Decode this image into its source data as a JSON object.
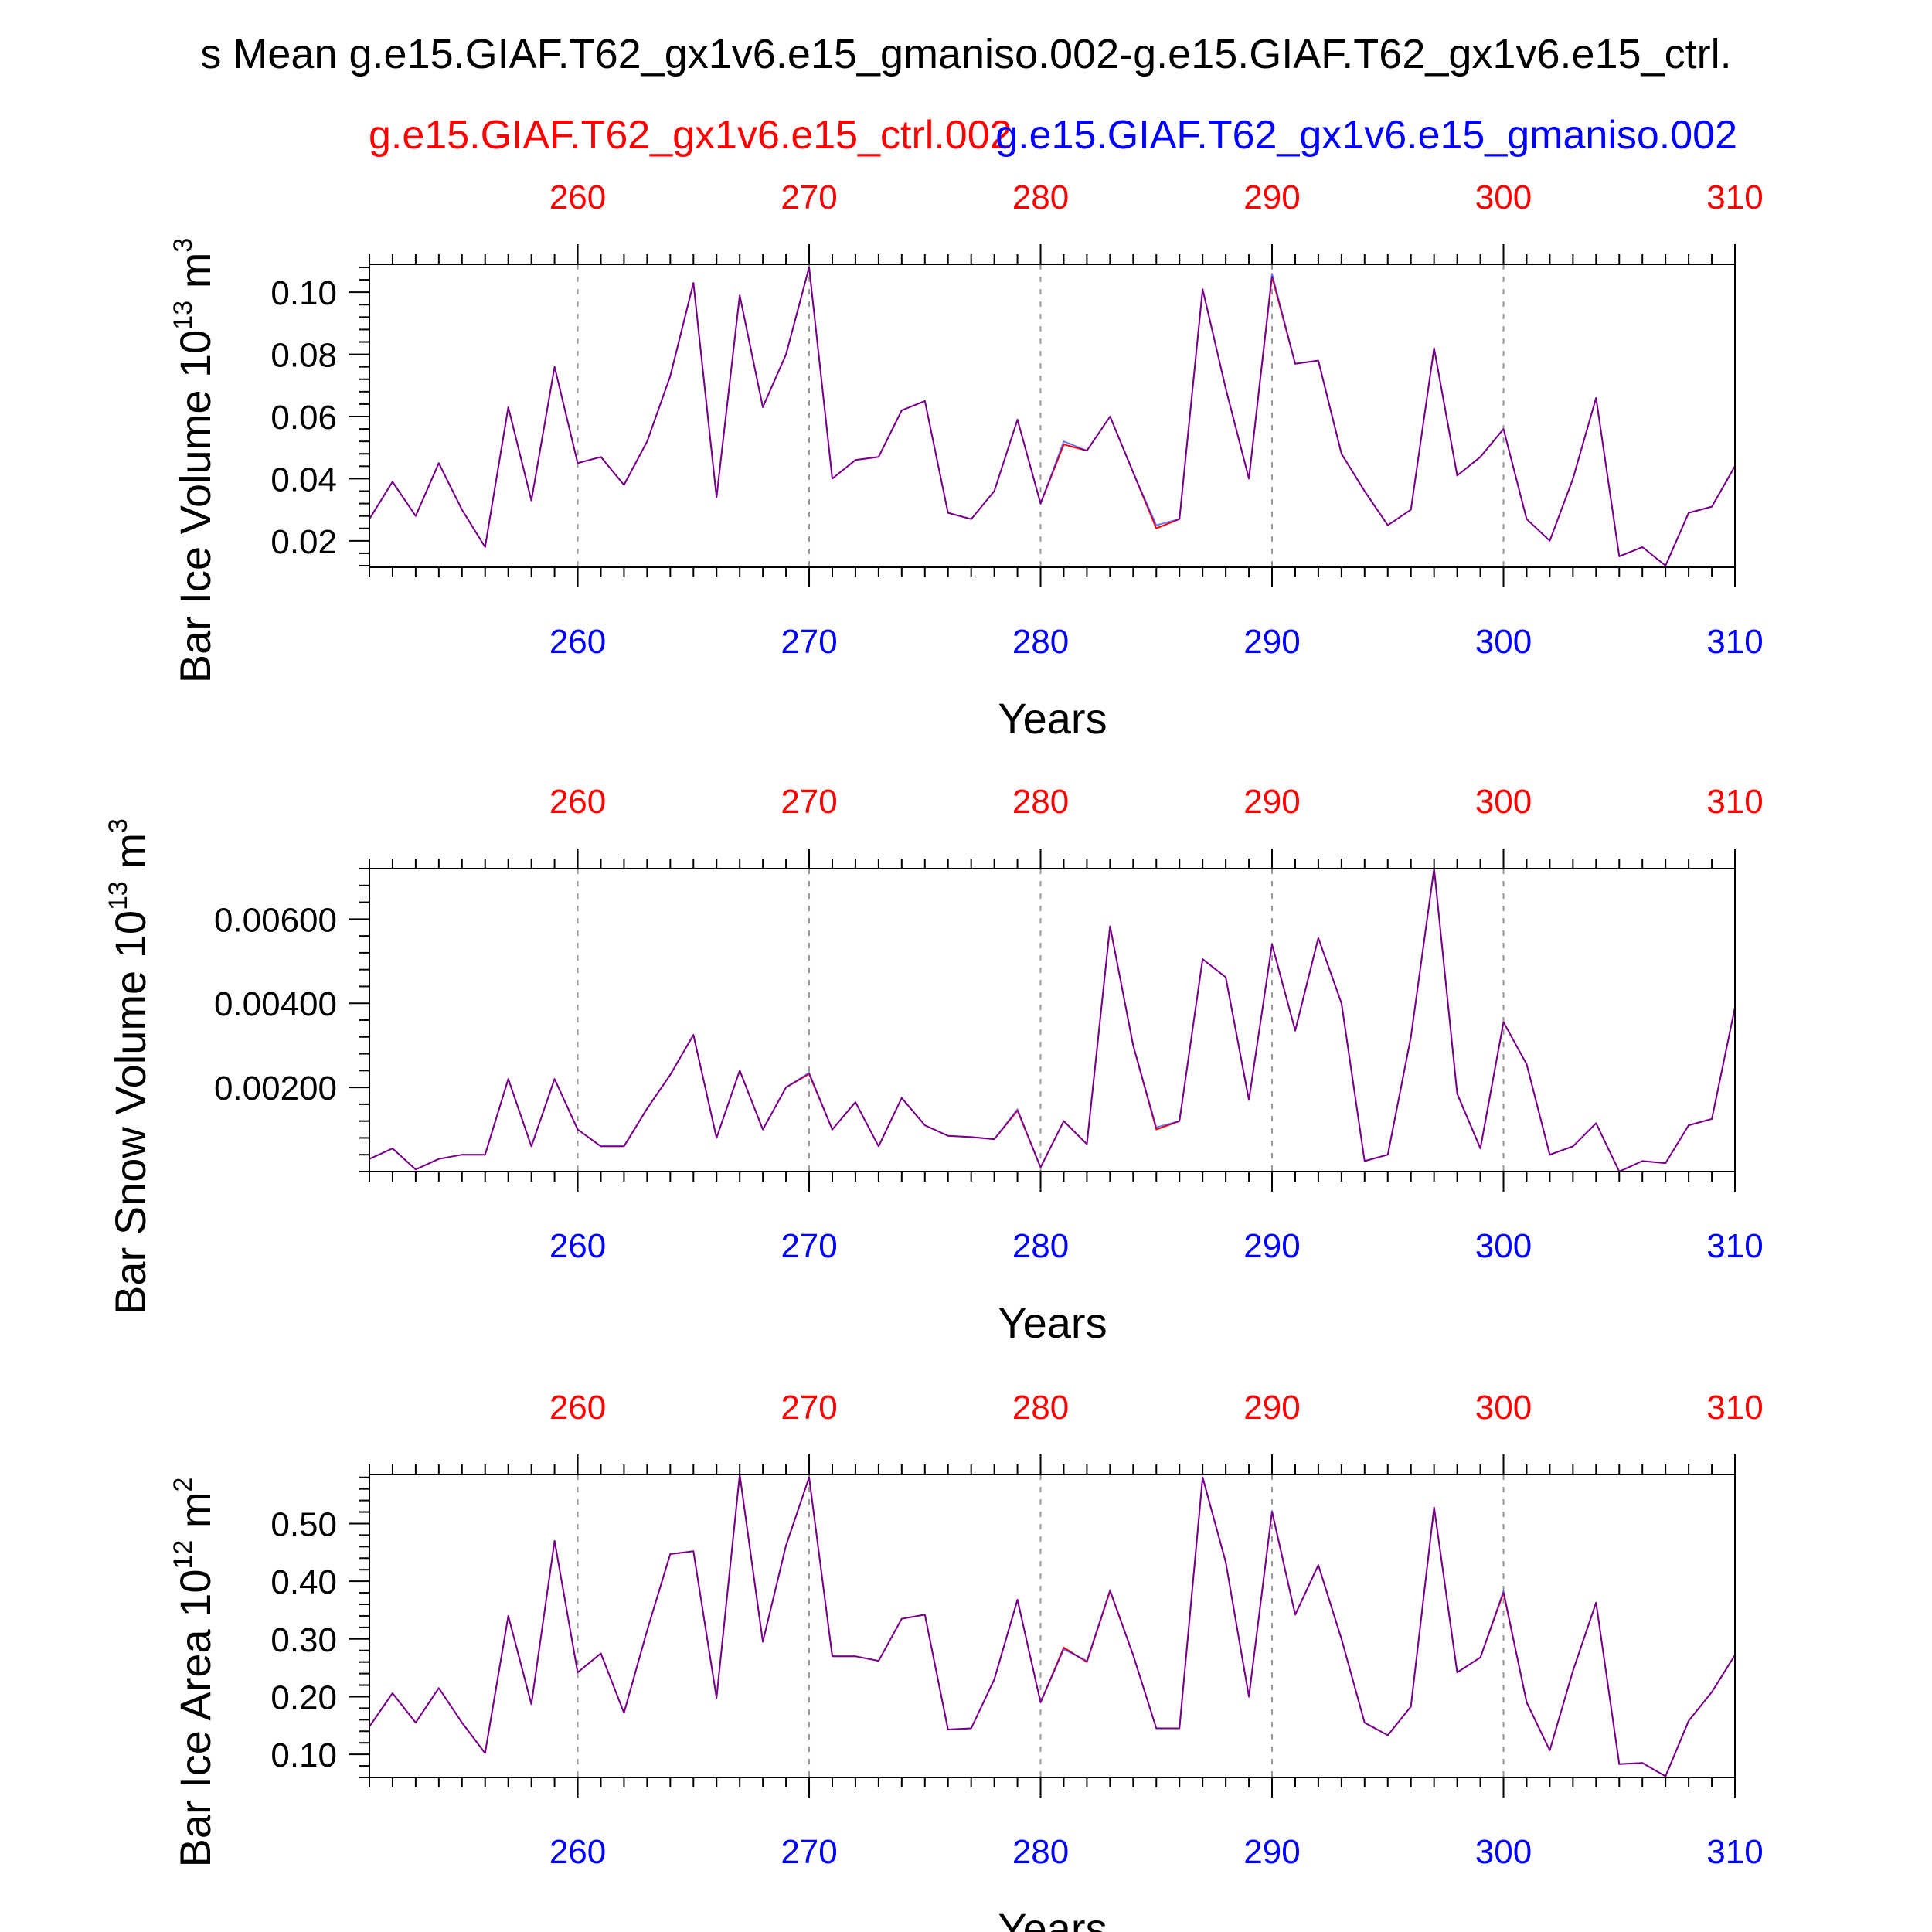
{
  "figure": {
    "title": "s Mean g.e15.GIAF.T62_gx1v6.e15_gmaniso.002-g.e15.GIAF.T62_gx1v6.e15_ctrl.",
    "case_ctrl": "g.e15.GIAF.T62_gx1v6.e15_ctrl.002",
    "case_test": "g.e15.GIAF.T62_gx1v6.e15_gmaniso.002",
    "xlabel": "Years",
    "colors": {
      "ctrl": "#ff0000",
      "test": "#0000ff",
      "axes": "#000000",
      "grid": "#999999"
    }
  },
  "chart_data": [
    {
      "type": "line",
      "ylabel": {
        "text": "Bar Ice Volume 10",
        "exp": "13",
        "unit": " m",
        "unit_exp": "3"
      },
      "xlim": [
        251,
        310
      ],
      "ylim": [
        0.0115,
        0.109
      ],
      "yticks": [
        0.02,
        0.04,
        0.06,
        0.08,
        0.1
      ],
      "ytick_labels": [
        "0.02",
        "0.04",
        "0.06",
        "0.08",
        "0.10"
      ],
      "xticks": [
        260,
        270,
        280,
        290,
        300,
        310
      ],
      "xtick_labels": [
        "260",
        "270",
        "280",
        "290",
        "300",
        "310"
      ],
      "x_start": 251,
      "series": [
        {
          "name": "g.e15.GIAF.T62_gx1v6.e15_ctrl.002",
          "color": "#ff0000",
          "values": [
            0.027,
            0.039,
            0.028,
            0.045,
            0.03,
            0.018,
            0.063,
            0.033,
            0.076,
            0.045,
            0.047,
            0.038,
            0.052,
            0.073,
            0.103,
            0.034,
            0.099,
            0.063,
            0.08,
            0.108,
            0.04,
            0.046,
            0.047,
            0.062,
            0.065,
            0.029,
            0.027,
            0.036,
            0.059,
            0.032,
            0.051,
            0.049,
            0.06,
            0.042,
            0.024,
            0.027,
            0.101,
            0.069,
            0.04,
            0.105,
            0.077,
            0.078,
            0.048,
            0.036,
            0.025,
            0.03,
            0.082,
            0.041,
            0.047,
            0.056,
            0.027,
            0.02,
            0.04,
            0.066,
            0.015,
            0.018,
            0.012,
            0.029,
            0.031,
            0.044
          ]
        },
        {
          "name": "g.e15.GIAF.T62_gx1v6.e15_gmaniso.002",
          "color": "#0000ff",
          "values": [
            0.027,
            0.039,
            0.028,
            0.045,
            0.03,
            0.018,
            0.063,
            0.033,
            0.076,
            0.045,
            0.047,
            0.038,
            0.052,
            0.073,
            0.103,
            0.034,
            0.099,
            0.063,
            0.08,
            0.108,
            0.04,
            0.046,
            0.047,
            0.062,
            0.065,
            0.029,
            0.027,
            0.036,
            0.059,
            0.032,
            0.052,
            0.049,
            0.06,
            0.042,
            0.025,
            0.027,
            0.101,
            0.069,
            0.04,
            0.106,
            0.077,
            0.078,
            0.048,
            0.036,
            0.025,
            0.03,
            0.082,
            0.041,
            0.047,
            0.056,
            0.027,
            0.02,
            0.04,
            0.066,
            0.015,
            0.018,
            0.012,
            0.029,
            0.031,
            0.044
          ]
        }
      ]
    },
    {
      "type": "line",
      "ylabel": {
        "text": "Bar Snow Volume 10",
        "exp": "13",
        "unit": " m",
        "unit_exp": "3"
      },
      "xlim": [
        251,
        310
      ],
      "ylim": [
        0.0,
        0.0072
      ],
      "yticks": [
        0.002,
        0.004,
        0.006
      ],
      "ytick_labels": [
        "0.00200",
        "0.00400",
        "0.00600"
      ],
      "xticks": [
        260,
        270,
        280,
        290,
        300,
        310
      ],
      "xtick_labels": [
        "260",
        "270",
        "280",
        "290",
        "300",
        "310"
      ],
      "x_start": 251,
      "series": [
        {
          "name": "g.e15.GIAF.T62_gx1v6.e15_ctrl.002",
          "color": "#ff0000",
          "values": [
            0.0003,
            0.00055,
            5e-05,
            0.0003,
            0.0004,
            0.0004,
            0.0022,
            0.0006,
            0.0022,
            0.001,
            0.0006,
            0.0006,
            0.0015,
            0.0023,
            0.00325,
            0.0008,
            0.0024,
            0.001,
            0.002,
            0.00232,
            0.001,
            0.00165,
            0.0006,
            0.00175,
            0.0011,
            0.00085,
            0.00082,
            0.00077,
            0.00145,
            0.0001,
            0.0012,
            0.00065,
            0.00583,
            0.003,
            0.001,
            0.0012,
            0.00505,
            0.00462,
            0.0017,
            0.0054,
            0.00335,
            0.00555,
            0.004,
            0.00025,
            0.0004,
            0.0032,
            0.0072,
            0.00185,
            0.00055,
            0.00355,
            0.00255,
            0.0004,
            0.0006,
            0.00115,
            0.0,
            0.00025,
            0.0002,
            0.0011,
            0.00125,
            0.0039
          ]
        },
        {
          "name": "g.e15.GIAF.T62_gx1v6.e15_gmaniso.002",
          "color": "#0000ff",
          "values": [
            0.0003,
            0.00055,
            5e-05,
            0.0003,
            0.0004,
            0.0004,
            0.0022,
            0.0006,
            0.0022,
            0.001,
            0.0006,
            0.0006,
            0.0015,
            0.0023,
            0.00325,
            0.0008,
            0.0024,
            0.001,
            0.002,
            0.00235,
            0.001,
            0.00165,
            0.0006,
            0.00175,
            0.0011,
            0.00085,
            0.00082,
            0.00077,
            0.00148,
            0.0001,
            0.0012,
            0.00065,
            0.00583,
            0.003,
            0.00105,
            0.0012,
            0.00505,
            0.00462,
            0.0017,
            0.0054,
            0.00335,
            0.00555,
            0.004,
            0.00025,
            0.0004,
            0.0032,
            0.0072,
            0.00185,
            0.00055,
            0.00355,
            0.00255,
            0.0004,
            0.0006,
            0.00115,
            0.0,
            0.00025,
            0.0002,
            0.0011,
            0.00125,
            0.0039
          ]
        }
      ]
    },
    {
      "type": "line",
      "ylabel": {
        "text": "Bar Ice Area 10",
        "exp": "12",
        "unit": " m",
        "unit_exp": "2"
      },
      "xlim": [
        251,
        310
      ],
      "ylim": [
        0.06,
        0.585
      ],
      "yticks": [
        0.1,
        0.2,
        0.3,
        0.4,
        0.5
      ],
      "ytick_labels": [
        "0.10",
        "0.20",
        "0.30",
        "0.40",
        "0.50"
      ],
      "xticks": [
        260,
        270,
        280,
        290,
        300,
        310
      ],
      "xtick_labels": [
        "260",
        "270",
        "280",
        "290",
        "300",
        "310"
      ],
      "x_start": 251,
      "series": [
        {
          "name": "g.e15.GIAF.T62_gx1v6.e15_ctrl.002",
          "color": "#ff0000",
          "values": [
            0.148,
            0.206,
            0.155,
            0.215,
            0.155,
            0.102,
            0.34,
            0.187,
            0.47,
            0.242,
            0.275,
            0.172,
            0.315,
            0.447,
            0.452,
            0.198,
            0.585,
            0.295,
            0.462,
            0.58,
            0.27,
            0.27,
            0.262,
            0.335,
            0.342,
            0.143,
            0.145,
            0.23,
            0.368,
            0.19,
            0.285,
            0.26,
            0.383,
            0.272,
            0.145,
            0.145,
            0.58,
            0.433,
            0.2,
            0.52,
            0.342,
            0.428,
            0.3,
            0.155,
            0.133,
            0.183,
            0.528,
            0.242,
            0.268,
            0.38,
            0.19,
            0.107,
            0.245,
            0.363,
            0.083,
            0.085,
            0.062,
            0.158,
            0.208,
            0.272
          ]
        },
        {
          "name": "g.e15.GIAF.T62_gx1v6.e15_gmaniso.002",
          "color": "#0000ff",
          "values": [
            0.148,
            0.206,
            0.155,
            0.215,
            0.155,
            0.102,
            0.34,
            0.187,
            0.47,
            0.242,
            0.275,
            0.172,
            0.315,
            0.447,
            0.452,
            0.198,
            0.585,
            0.295,
            0.462,
            0.58,
            0.27,
            0.27,
            0.262,
            0.335,
            0.342,
            0.143,
            0.145,
            0.23,
            0.368,
            0.19,
            0.282,
            0.262,
            0.385,
            0.272,
            0.145,
            0.145,
            0.58,
            0.433,
            0.2,
            0.522,
            0.342,
            0.428,
            0.3,
            0.155,
            0.133,
            0.183,
            0.528,
            0.242,
            0.268,
            0.383,
            0.19,
            0.107,
            0.245,
            0.363,
            0.083,
            0.085,
            0.062,
            0.158,
            0.208,
            0.272
          ]
        }
      ]
    }
  ]
}
